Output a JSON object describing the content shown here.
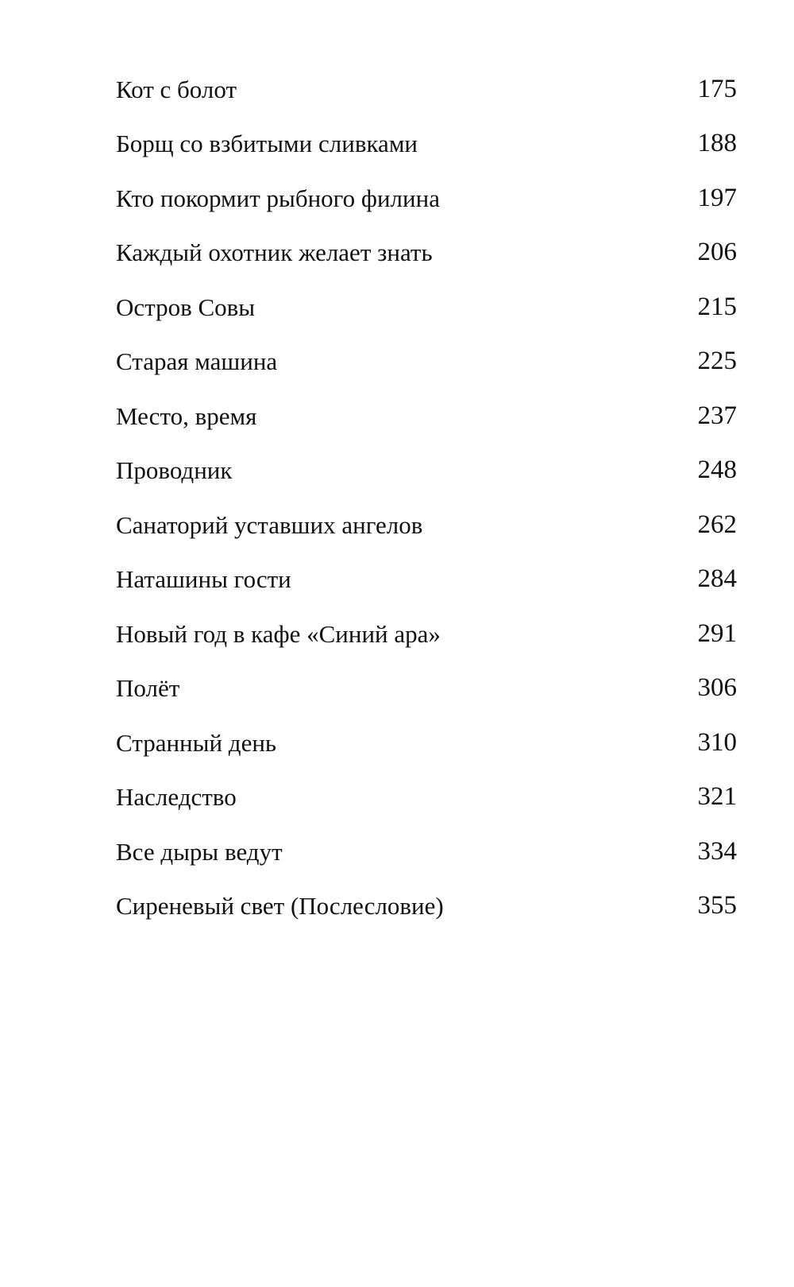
{
  "toc": {
    "entries": [
      {
        "title": "Кот с болот",
        "page": "175"
      },
      {
        "title": "Борщ со взбитыми сливками",
        "page": "188"
      },
      {
        "title": "Кто покормит рыбного филина",
        "page": "197"
      },
      {
        "title": "Каждый охотник желает знать",
        "page": "206"
      },
      {
        "title": "Остров Совы",
        "page": "215"
      },
      {
        "title": "Старая машина",
        "page": "225"
      },
      {
        "title": "Место, время",
        "page": "237"
      },
      {
        "title": "Проводник",
        "page": "248"
      },
      {
        "title": "Санаторий уставших ангелов",
        "page": "262"
      },
      {
        "title": "Наташины гости",
        "page": "284"
      },
      {
        "title": "Новый год в кафе «Синий ара»",
        "page": "291"
      },
      {
        "title": "Полёт",
        "page": "306"
      },
      {
        "title": "Странный день",
        "page": "310"
      },
      {
        "title": "Наследство",
        "page": "321"
      },
      {
        "title": "Все дыры ведут",
        "page": "334"
      },
      {
        "title": "Сиреневый свет (Послесловие)",
        "page": "355"
      }
    ]
  }
}
